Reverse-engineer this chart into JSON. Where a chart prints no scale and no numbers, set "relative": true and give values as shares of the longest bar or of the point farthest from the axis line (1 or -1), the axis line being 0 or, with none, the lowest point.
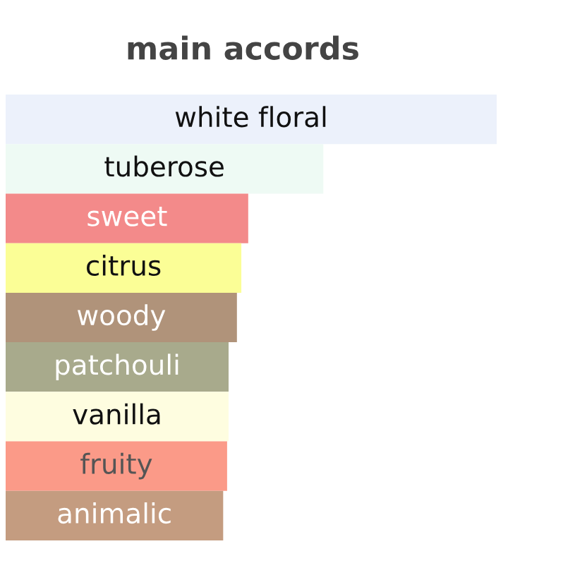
{
  "chart_data": {
    "type": "bar",
    "orientation": "horizontal",
    "relative": true,
    "title": "main accords",
    "categories": [
      "white floral",
      "tuberose",
      "sweet",
      "citrus",
      "woody",
      "patchouli",
      "vanilla",
      "fruity",
      "animalic"
    ],
    "values": [
      1,
      0.647,
      0.494,
      0.48,
      0.471,
      0.454,
      0.454,
      0.451,
      0.443
    ],
    "colors": [
      "#ecf1fb",
      "#eefaf4",
      "#f38a8a",
      "#fbfe96",
      "#b0937a",
      "#a8aa8c",
      "#fefde0",
      "#fb9a88",
      "#c49c80"
    ],
    "legend": false
  }
}
